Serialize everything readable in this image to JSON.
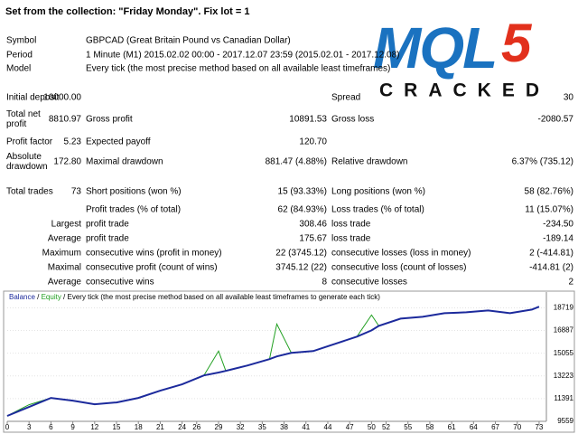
{
  "header": {
    "title": "Set from the collection: \"Friday Monday\".   Fix lot = 1"
  },
  "info": [
    [
      "Symbol",
      "GBPCAD (Great Britain Pound vs Canadian Dollar)"
    ],
    [
      "Period",
      "1 Minute (M1) 2015.02.02 00:00 - 2017.12.07 23:59 (2015.02.01 - 2017.12.08)"
    ],
    [
      "Model",
      "Every tick (the most precise method based on all available least timeframes)"
    ]
  ],
  "logo": {
    "text": "MQL",
    "accent": "5",
    "tagline": "CRACKED"
  },
  "stats": [
    [
      "Initial deposit",
      "10000.00",
      "Spread",
      "30"
    ],
    [
      "Total net profit",
      "8810.97",
      "Gross profit",
      "10891.53",
      "Gross loss",
      "-2080.57"
    ],
    [
      "Profit factor",
      "5.23",
      "Expected payoff",
      "120.70"
    ],
    [
      "Absolute drawdown",
      "172.80",
      "Maximal drawdown",
      "881.47 (4.88%)",
      "Relative drawdown",
      "6.37% (735.12)"
    ],
    [
      "Total trades",
      "73",
      "Short positions (won %)",
      "15 (93.33%)",
      "Long positions (won %)",
      "58 (82.76%)"
    ],
    [
      "Profit trades (% of total)",
      "62 (84.93%)",
      "Loss trades (% of total)",
      "11 (15.07%)"
    ],
    [
      "Largest",
      "profit trade",
      "308.46",
      "loss trade",
      "-234.50"
    ],
    [
      "Average",
      "profit trade",
      "175.67",
      "loss trade",
      "-189.14"
    ],
    [
      "Maximum",
      "consecutive wins (profit in money)",
      "22 (3745.12)",
      "consecutive losses (loss in money)",
      "2 (-414.81)"
    ],
    [
      "Maximal",
      "consecutive profit (count of wins)",
      "3745.12 (22)",
      "consecutive loss (count of losses)",
      "-414.81 (2)"
    ],
    [
      "Average",
      "consecutive wins",
      "8",
      "consecutive losses",
      "2"
    ]
  ],
  "chart_data": {
    "type": "line",
    "legend_separator": " / ",
    "subtitle": "Every tick (the most precise method based on all available least timeframes to generate each tick)",
    "x": [
      0,
      3,
      6,
      9,
      12,
      15,
      18,
      21,
      24,
      27,
      29,
      30,
      33,
      36,
      37,
      39,
      42,
      45,
      48,
      50,
      51,
      54,
      57,
      60,
      63,
      66,
      69,
      72,
      73
    ],
    "series": [
      {
        "name": "Balance",
        "color": "#1c2a9c",
        "values": [
          9995,
          10722,
          11449,
          11231,
          10940,
          11086,
          11449,
          12031,
          12540,
          13267,
          13500,
          13630,
          14066,
          14575,
          14800,
          15084,
          15230,
          15811,
          16393,
          16900,
          17265,
          17847,
          17992,
          18283,
          18356,
          18502,
          18283,
          18574,
          18811
        ]
      },
      {
        "name": "Equity",
        "color": "#22a022",
        "values": [
          9995,
          10900,
          11449,
          11231,
          10940,
          11086,
          11449,
          12031,
          12540,
          13267,
          15230,
          13630,
          14066,
          14575,
          17411,
          15084,
          15230,
          15811,
          16393,
          18138,
          17265,
          17847,
          17992,
          18283,
          18356,
          18502,
          18283,
          18574,
          18811
        ]
      }
    ],
    "xlim": [
      0,
      74
    ],
    "xticks": [
      0,
      3,
      6,
      9,
      12,
      15,
      18,
      21,
      24,
      26,
      29,
      32,
      35,
      38,
      41,
      44,
      47,
      50,
      52,
      55,
      58,
      61,
      64,
      67,
      70,
      73
    ],
    "ylim": [
      9559,
      19700
    ],
    "yticks": [
      9559,
      11391,
      13223,
      15055,
      16887,
      18719
    ],
    "grid": true
  }
}
